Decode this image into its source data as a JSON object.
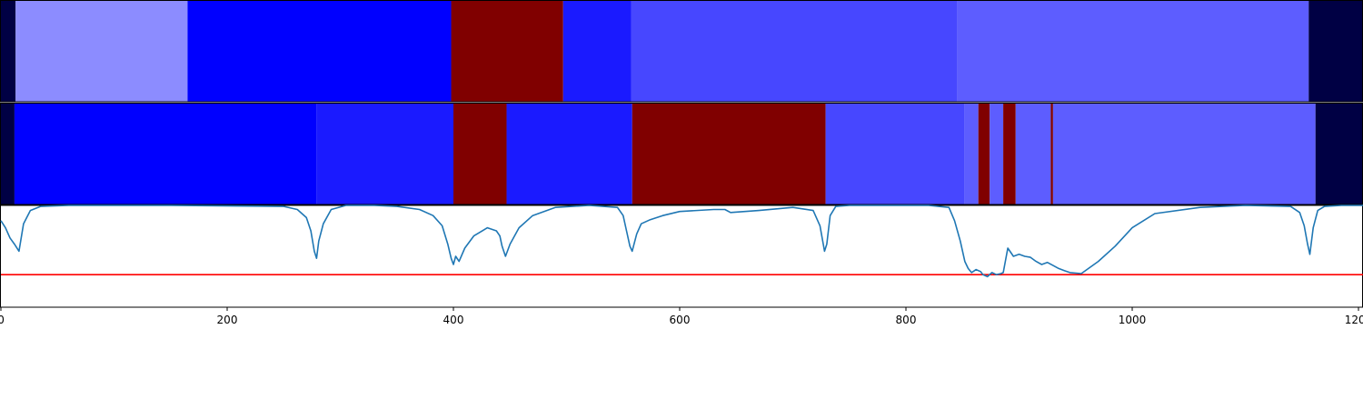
{
  "chart_data": [
    {
      "type": "heatmap",
      "xlim": [
        0,
        1204
      ],
      "segments": [
        {
          "start": 0,
          "end": 13,
          "color": "#000044"
        },
        {
          "start": 13,
          "end": 165,
          "color": "#8c8cff"
        },
        {
          "start": 165,
          "end": 398,
          "color": "#0000ff"
        },
        {
          "start": 398,
          "end": 497,
          "color": "#800000"
        },
        {
          "start": 497,
          "end": 557,
          "color": "#1a1aff"
        },
        {
          "start": 557,
          "end": 845,
          "color": "#4747ff"
        },
        {
          "start": 845,
          "end": 1156,
          "color": "#5d5dff"
        },
        {
          "start": 1156,
          "end": 1204,
          "color": "#000044"
        }
      ]
    },
    {
      "type": "heatmap",
      "xlim": [
        0,
        1204
      ],
      "segments": [
        {
          "start": 0,
          "end": 12,
          "color": "#000044"
        },
        {
          "start": 12,
          "end": 279,
          "color": "#0000ff"
        },
        {
          "start": 279,
          "end": 400,
          "color": "#1a1aff"
        },
        {
          "start": 400,
          "end": 447,
          "color": "#800000"
        },
        {
          "start": 447,
          "end": 558,
          "color": "#1a1aff"
        },
        {
          "start": 558,
          "end": 729,
          "color": "#800000"
        },
        {
          "start": 729,
          "end": 852,
          "color": "#4747ff"
        },
        {
          "start": 852,
          "end": 864,
          "color": "#5d5dff"
        },
        {
          "start": 864,
          "end": 874,
          "color": "#800000"
        },
        {
          "start": 874,
          "end": 886,
          "color": "#5d5dff"
        },
        {
          "start": 886,
          "end": 897,
          "color": "#800000"
        },
        {
          "start": 897,
          "end": 928,
          "color": "#5d5dff"
        },
        {
          "start": 928,
          "end": 930,
          "color": "#800000"
        },
        {
          "start": 930,
          "end": 1162,
          "color": "#5d5dff"
        },
        {
          "start": 1162,
          "end": 1204,
          "color": "#000044"
        }
      ]
    },
    {
      "type": "line",
      "xlim": [
        0,
        1204
      ],
      "ylim": [
        0,
        1
      ],
      "line_color": "#1f77b4",
      "threshold": 0.32,
      "threshold_color": "#ff0000",
      "x": [
        0,
        4,
        8,
        12,
        16,
        20,
        26,
        35,
        60,
        150,
        250,
        262,
        270,
        274,
        277,
        279,
        281,
        285,
        292,
        305,
        330,
        350,
        370,
        382,
        390,
        395,
        398,
        400,
        402,
        405,
        410,
        418,
        430,
        438,
        441,
        443,
        446,
        450,
        458,
        470,
        490,
        520,
        545,
        550,
        553,
        556,
        558,
        562,
        566,
        574,
        585,
        600,
        630,
        640,
        645,
        670,
        700,
        718,
        724,
        728,
        730,
        733,
        738,
        750,
        780,
        820,
        838,
        843,
        848,
        852,
        855,
        858,
        862,
        866,
        868,
        872,
        876,
        880,
        884,
        886,
        890,
        895,
        900,
        905,
        910,
        915,
        920,
        925,
        930,
        935,
        940,
        945,
        955,
        970,
        985,
        1000,
        1020,
        1060,
        1100,
        1140,
        1148,
        1152,
        1155,
        1157,
        1160,
        1164,
        1170,
        1185,
        1204
      ],
      "y": [
        0.85,
        0.78,
        0.68,
        0.62,
        0.55,
        0.82,
        0.95,
        0.99,
        1.0,
        1.0,
        0.99,
        0.96,
        0.88,
        0.75,
        0.55,
        0.48,
        0.65,
        0.82,
        0.96,
        1.0,
        1.0,
        0.99,
        0.96,
        0.9,
        0.8,
        0.62,
        0.48,
        0.42,
        0.5,
        0.45,
        0.58,
        0.7,
        0.78,
        0.75,
        0.7,
        0.6,
        0.5,
        0.62,
        0.78,
        0.9,
        0.98,
        1.0,
        0.98,
        0.9,
        0.75,
        0.6,
        0.55,
        0.72,
        0.82,
        0.86,
        0.9,
        0.94,
        0.96,
        0.96,
        0.93,
        0.95,
        0.98,
        0.95,
        0.8,
        0.55,
        0.62,
        0.9,
        0.99,
        1.0,
        1.0,
        1.0,
        0.98,
        0.85,
        0.65,
        0.45,
        0.38,
        0.34,
        0.37,
        0.35,
        0.32,
        0.3,
        0.34,
        0.32,
        0.33,
        0.34,
        0.58,
        0.5,
        0.52,
        0.5,
        0.49,
        0.45,
        0.42,
        0.44,
        0.41,
        0.38,
        0.36,
        0.34,
        0.33,
        0.45,
        0.6,
        0.78,
        0.92,
        0.98,
        1.0,
        0.99,
        0.93,
        0.8,
        0.62,
        0.52,
        0.78,
        0.95,
        0.99,
        1.0,
        1.0
      ]
    }
  ],
  "x_ticks": [
    "0",
    "200",
    "400",
    "600",
    "800",
    "1000",
    "1200"
  ]
}
